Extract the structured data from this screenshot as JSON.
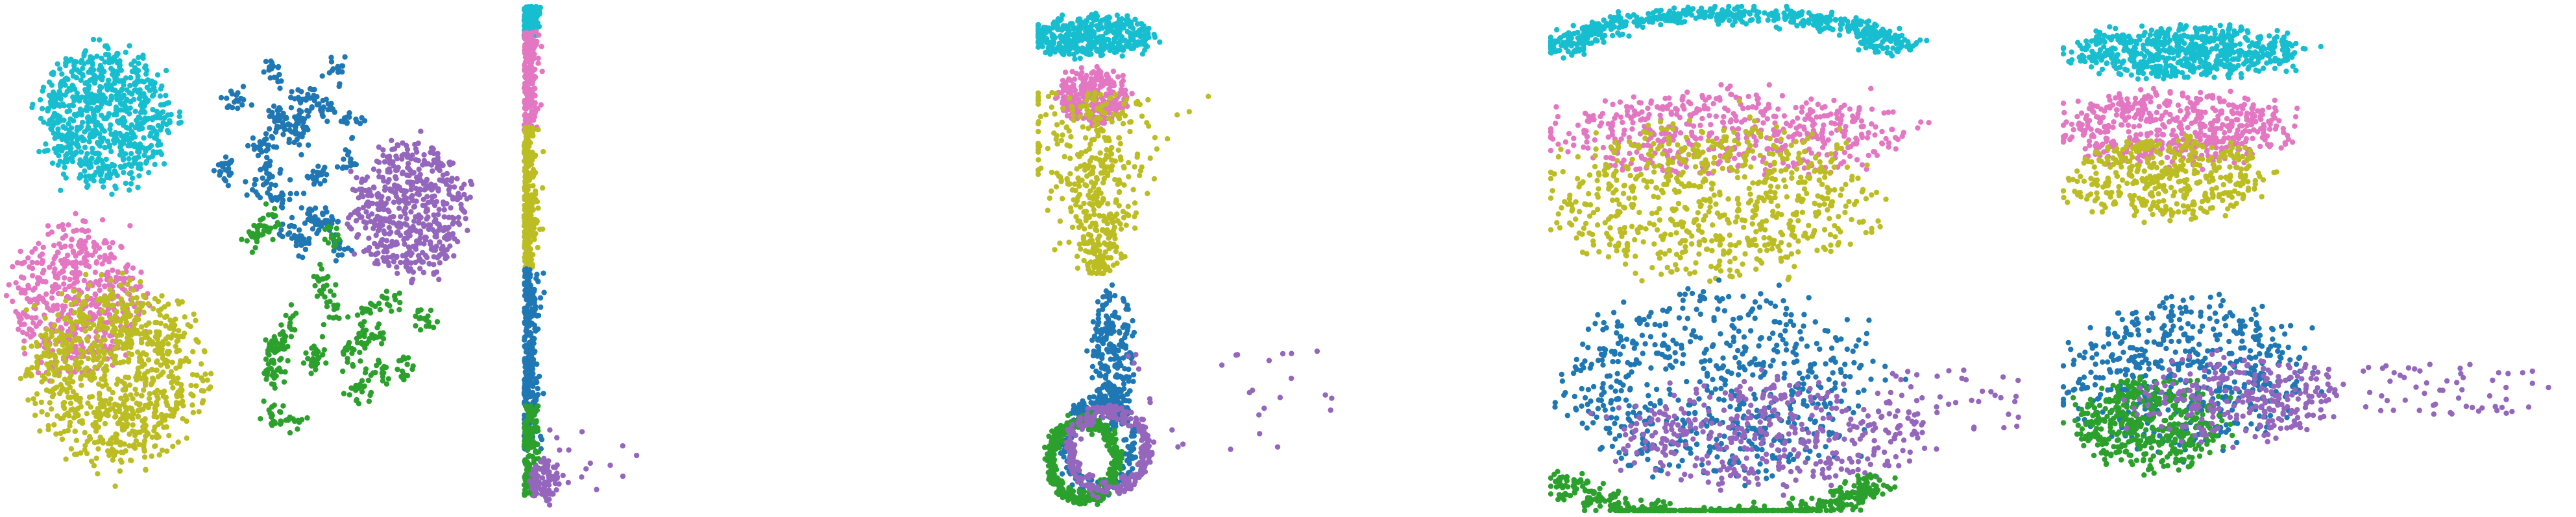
{
  "palette": {
    "blue": "#1f77b4",
    "green": "#2ca02c",
    "purple": "#9467bd",
    "pink": "#e377c2",
    "olive": "#bcbd22",
    "cyan": "#17becf"
  },
  "chart_data": [
    {
      "type": "scatter",
      "axes_visible": false,
      "grid": false,
      "legend": "none",
      "xlim": [
        0,
        100
      ],
      "ylim": [
        0,
        100
      ],
      "clusters": [
        {
          "color": "cyan",
          "shape": "blob",
          "center": [
            20,
            78
          ],
          "spread": [
            13,
            13
          ],
          "n": 750
        },
        {
          "color": "pink",
          "shape": "blob",
          "center": [
            14,
            42
          ],
          "spread": [
            13,
            14
          ],
          "n": 520
        },
        {
          "color": "olive",
          "shape": "blob",
          "center": [
            22,
            27
          ],
          "spread": [
            17,
            17
          ],
          "n": 850
        },
        {
          "color": "blue",
          "shape": "islets",
          "center": [
            57,
            72
          ],
          "spread": [
            15,
            20
          ],
          "n": 420
        },
        {
          "color": "green",
          "shape": "islets",
          "center": [
            67,
            37
          ],
          "spread": [
            18,
            22
          ],
          "n": 380
        },
        {
          "color": "purple",
          "shape": "blob",
          "center": [
            81,
            60
          ],
          "spread": [
            11,
            13
          ],
          "n": 520
        }
      ]
    },
    {
      "type": "scatter",
      "axes_visible": false,
      "grid": false,
      "legend": "none",
      "xlim": [
        0,
        100
      ],
      "ylim": [
        0,
        100
      ],
      "clusters": [
        {
          "color": "cyan",
          "shape": "strip",
          "center": [
            1,
            97
          ],
          "spread": [
            1.2,
            3
          ],
          "n": 220
        },
        {
          "color": "pink",
          "shape": "strip",
          "center": [
            1,
            85
          ],
          "spread": [
            1.2,
            10
          ],
          "n": 220
        },
        {
          "color": "olive",
          "shape": "strip",
          "center": [
            1,
            62
          ],
          "spread": [
            1.2,
            14
          ],
          "n": 260
        },
        {
          "color": "blue",
          "shape": "strip",
          "center": [
            1,
            30
          ],
          "spread": [
            1.3,
            18
          ],
          "n": 300
        },
        {
          "color": "green",
          "shape": "strip",
          "center": [
            1,
            12
          ],
          "spread": [
            1.5,
            9
          ],
          "n": 160
        },
        {
          "color": "purple",
          "shape": "blob",
          "center": [
            5,
            6
          ],
          "spread": [
            3,
            4
          ],
          "n": 90
        },
        {
          "color": "purple",
          "shape": "tail",
          "center": [
            14,
            10
          ],
          "spread": [
            10,
            6
          ],
          "n": 20
        }
      ]
    },
    {
      "type": "scatter",
      "axes_visible": false,
      "grid": false,
      "legend": "none",
      "xlim": [
        0,
        100
      ],
      "ylim": [
        0,
        100
      ],
      "clusters": [
        {
          "color": "cyan",
          "shape": "blob",
          "center": [
            11,
            94
          ],
          "spread": [
            12,
            4
          ],
          "n": 420
        },
        {
          "color": "pink",
          "shape": "blob",
          "center": [
            11,
            82
          ],
          "spread": [
            7,
            5
          ],
          "n": 300
        },
        {
          "color": "olive",
          "shape": "funnel",
          "center": [
            12,
            65
          ],
          "spread": [
            8,
            18
          ],
          "n": 420
        },
        {
          "color": "blue",
          "shape": "blob",
          "center": [
            15,
            30
          ],
          "spread": [
            4,
            14
          ],
          "n": 260
        },
        {
          "color": "blue",
          "shape": "ring",
          "center": [
            12,
            13
          ],
          "spread": [
            7,
            9
          ],
          "n": 180
        },
        {
          "color": "green",
          "shape": "ring",
          "center": [
            9,
            10
          ],
          "spread": [
            7,
            8
          ],
          "n": 420
        },
        {
          "color": "purple",
          "shape": "ring",
          "center": [
            14,
            12
          ],
          "spread": [
            8,
            8
          ],
          "n": 280
        },
        {
          "color": "purple",
          "shape": "tail",
          "center": [
            38,
            22
          ],
          "spread": [
            22,
            10
          ],
          "n": 30
        }
      ]
    },
    {
      "type": "scatter",
      "axes_visible": false,
      "grid": false,
      "legend": "none",
      "xlim": [
        0,
        100
      ],
      "ylim": [
        0,
        100
      ],
      "clusters": [
        {
          "color": "cyan",
          "shape": "arc",
          "center": [
            36,
            90
          ],
          "spread": [
            36,
            9
          ],
          "n": 560
        },
        {
          "color": "pink",
          "shape": "blob",
          "center": [
            35,
            75
          ],
          "spread": [
            34,
            8
          ],
          "n": 520
        },
        {
          "color": "olive",
          "shape": "blob",
          "center": [
            33,
            62
          ],
          "spread": [
            30,
            15
          ],
          "n": 700
        },
        {
          "color": "blue",
          "shape": "blob",
          "center": [
            33,
            25
          ],
          "spread": [
            30,
            18
          ],
          "n": 620
        },
        {
          "color": "purple",
          "shape": "blob",
          "center": [
            44,
            15
          ],
          "spread": [
            30,
            10
          ],
          "n": 420
        },
        {
          "color": "green",
          "shape": "arc",
          "center": [
            34,
            8
          ],
          "spread": [
            33,
            10
          ],
          "n": 480
        },
        {
          "color": "purple",
          "shape": "tail",
          "center": [
            80,
            22
          ],
          "spread": [
            14,
            6
          ],
          "n": 40
        }
      ]
    },
    {
      "type": "scatter",
      "axes_visible": false,
      "grid": false,
      "legend": "none",
      "xlim": [
        0,
        100
      ],
      "ylim": [
        0,
        100
      ],
      "clusters": [
        {
          "color": "cyan",
          "shape": "blob",
          "center": [
            24,
            91
          ],
          "spread": [
            22,
            5
          ],
          "n": 620
        },
        {
          "color": "pink",
          "shape": "blob",
          "center": [
            22,
            76
          ],
          "spread": [
            22,
            7
          ],
          "n": 520
        },
        {
          "color": "olive",
          "shape": "blob",
          "center": [
            21,
            66
          ],
          "spread": [
            19,
            8
          ],
          "n": 420
        },
        {
          "color": "blue",
          "shape": "blob",
          "center": [
            24,
            27
          ],
          "spread": [
            23,
            14
          ],
          "n": 520
        },
        {
          "color": "green",
          "shape": "blob",
          "center": [
            17,
            17
          ],
          "spread": [
            14,
            9
          ],
          "n": 420
        },
        {
          "color": "purple",
          "shape": "blob",
          "center": [
            34,
            22
          ],
          "spread": [
            19,
            8
          ],
          "n": 260
        },
        {
          "color": "purple",
          "shape": "tail",
          "center": [
            70,
            24
          ],
          "spread": [
            28,
            5
          ],
          "n": 70
        }
      ]
    }
  ]
}
